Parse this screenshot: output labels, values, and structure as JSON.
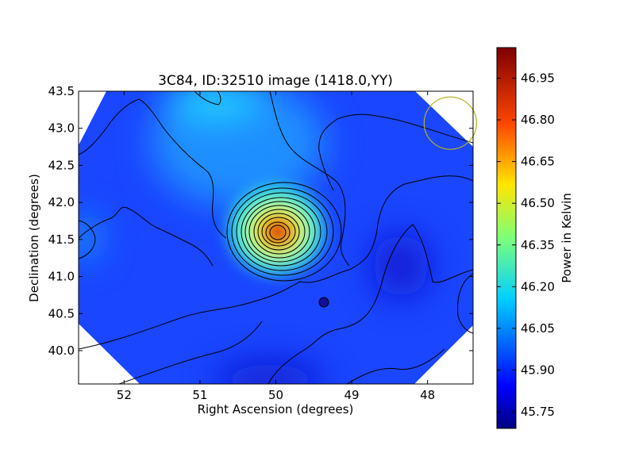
{
  "chart_data": {
    "type": "heatmap",
    "title": "3C84, ID:32510 image (1418.0,YY)",
    "xlabel": "Right Ascension (degrees)",
    "ylabel": "Declination (degrees)",
    "xlim": [
      52.6,
      47.4
    ],
    "ylim": [
      39.55,
      43.5
    ],
    "x_ticks": [
      52,
      51,
      50,
      49,
      48
    ],
    "x_tick_labels": [
      "52",
      "51",
      "50",
      "49",
      "48"
    ],
    "y_ticks": [
      40.0,
      40.5,
      41.0,
      41.5,
      42.0,
      42.5,
      43.0,
      43.5
    ],
    "y_tick_labels": [
      "40.0",
      "40.5",
      "41.0",
      "41.5",
      "42.0",
      "42.5",
      "43.0",
      "43.5"
    ],
    "colorbar": {
      "label": "Power in Kelvin",
      "range": [
        45.69,
        47.06
      ],
      "colormap": "jet",
      "ticks": [
        45.75,
        45.9,
        46.05,
        46.2,
        46.35,
        46.5,
        46.65,
        46.8,
        46.95
      ],
      "tick_labels": [
        "45.75",
        "45.90",
        "46.05",
        "46.20",
        "46.35",
        "46.50",
        "46.65",
        "46.80",
        "46.95"
      ]
    },
    "grid": false,
    "contours": true,
    "peak": {
      "ra": 49.95,
      "dec": 41.57,
      "value": 47.02
    },
    "secondary_features": [
      {
        "ra": 51.2,
        "dec": 43.35,
        "value": 46.18
      },
      {
        "ra": 52.6,
        "dec": 41.5,
        "value": 46.0
      },
      {
        "ra": 49.4,
        "dec": 40.63,
        "value": 45.84
      },
      {
        "ra": 48.2,
        "dec": 41.0,
        "value": 45.8
      },
      {
        "ra": 50.1,
        "dec": 39.55,
        "value": 45.78
      }
    ],
    "beam_circle": {
      "ra": 47.7,
      "dec": 43.07,
      "color": "#b4b414"
    }
  }
}
